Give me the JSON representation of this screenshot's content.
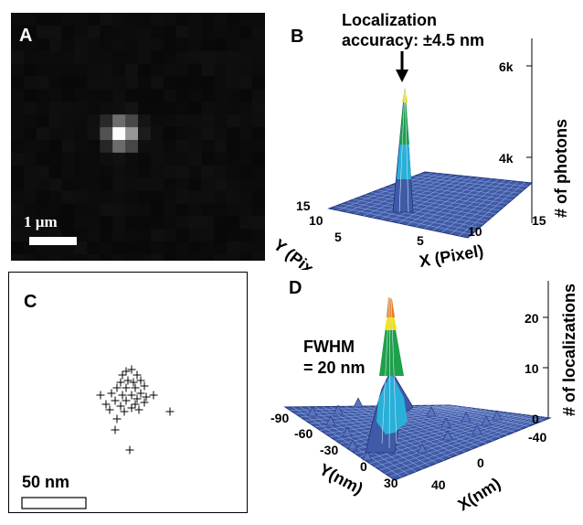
{
  "panel_a": {
    "label": "A",
    "scale_bar": "1 µm"
  },
  "panel_b": {
    "label": "B",
    "annotation_line1": "Localization",
    "annotation_line2": "accuracy:  ±4.5 nm",
    "z_axis_label": "# of photons",
    "z_ticks": [
      "6k",
      "4k"
    ],
    "y_axis_label": "Y (Pixel)",
    "x_axis_label": "X (Pixel)",
    "y_ticks": [
      "15",
      "10",
      "5"
    ],
    "x_ticks": [
      "5",
      "10",
      "15"
    ]
  },
  "panel_c": {
    "label": "C",
    "scale_bar": "50 nm"
  },
  "panel_d": {
    "label": "D",
    "annotation_line1": "FWHM",
    "annotation_line2": "= 20 nm",
    "z_axis_label": "# of localizations",
    "z_ticks": [
      "20",
      "10",
      "0"
    ],
    "y_axis_label": "Y(nm)",
    "x_axis_label": "X(nm)",
    "y_ticks": [
      "-90",
      "-60",
      "-30",
      "0",
      "30"
    ],
    "x_ticks": [
      "-40",
      "0",
      "40"
    ]
  },
  "colors": {
    "surface_base": "#3f5aa6",
    "surface_grid": "#8aa0d8",
    "peak_cyan": "#29b0d8",
    "peak_green": "#1fa04a",
    "peak_yellow": "#f4e000",
    "peak_orange": "#ee7a1a"
  }
}
